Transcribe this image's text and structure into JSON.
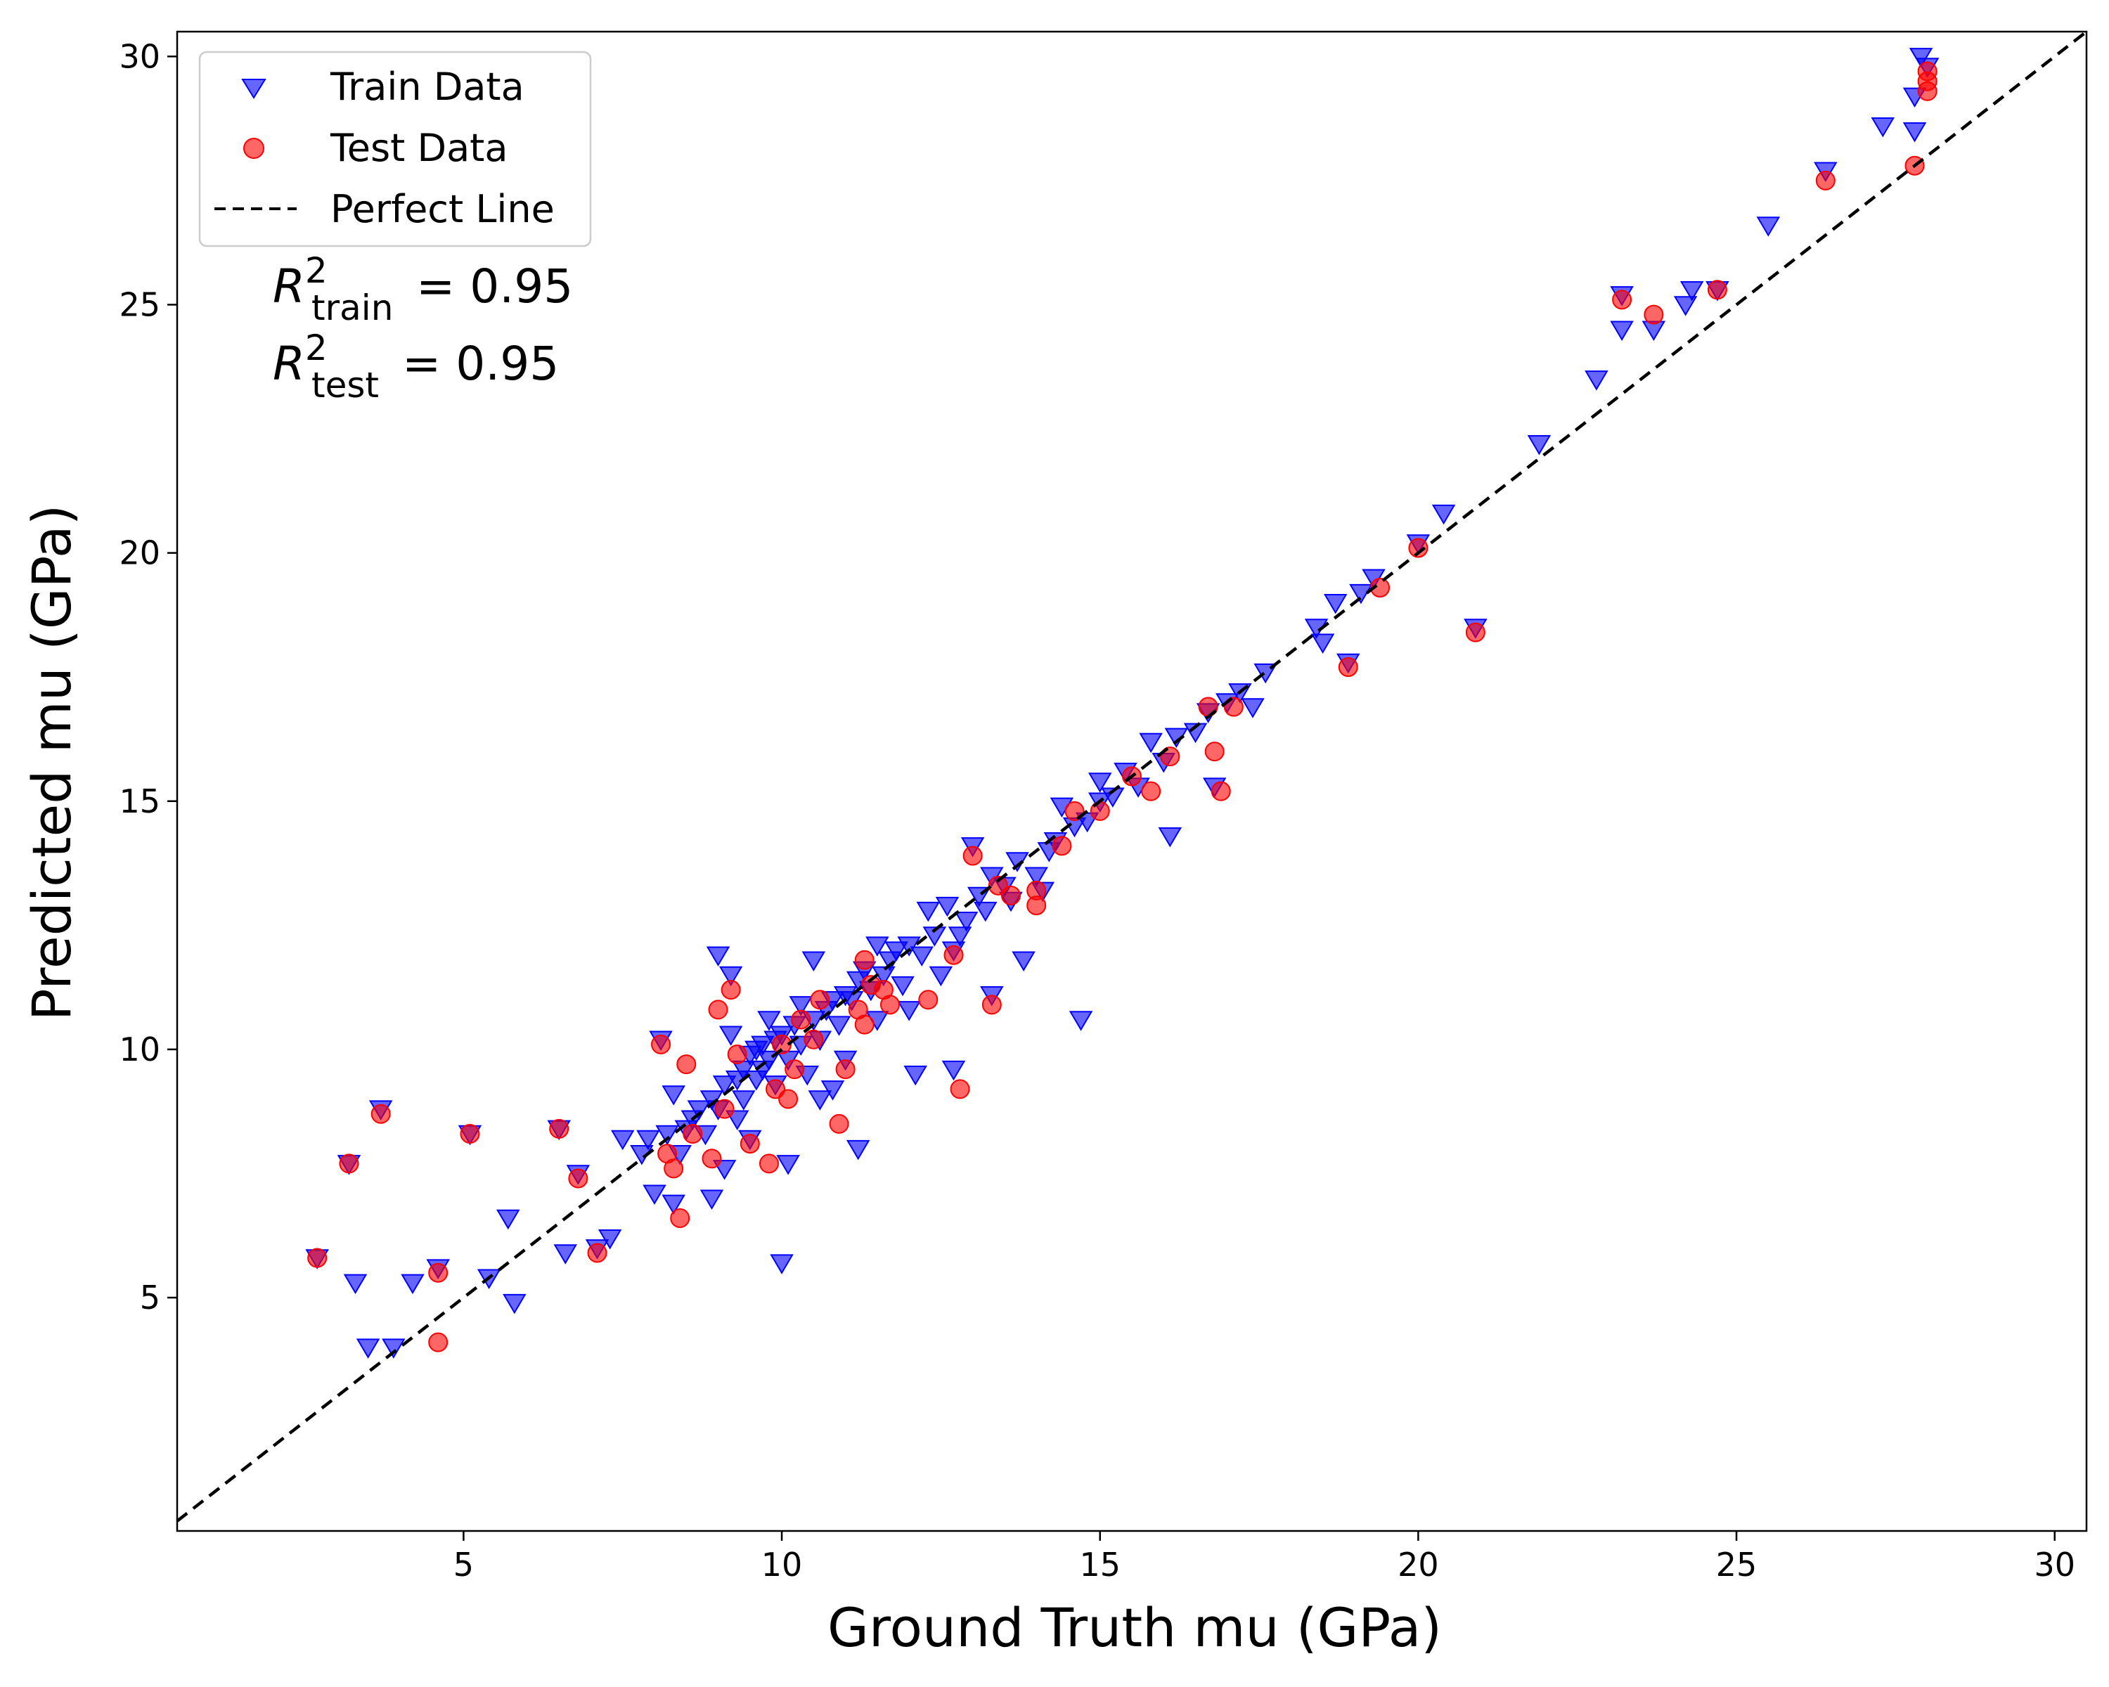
{
  "chart_data": {
    "type": "scatter",
    "title": "",
    "xlabel": "Ground Truth mu (GPa)",
    "ylabel": "Predicted mu (GPa)",
    "xlim": [
      0.5,
      30.5
    ],
    "ylim": [
      0.3,
      30.5
    ],
    "xticks": [
      5,
      10,
      15,
      20,
      25,
      30
    ],
    "yticks": [
      5,
      10,
      15,
      20,
      25,
      30
    ],
    "grid": false,
    "legend_position": "top-left",
    "legend": [
      {
        "label": "Train Data",
        "marker": "triangle-down",
        "color": "#0000ff"
      },
      {
        "label": "Test Data",
        "marker": "circle",
        "color": "#ff0000"
      },
      {
        "label": "Perfect Line",
        "marker": "dashed-line",
        "color": "#000000"
      }
    ],
    "annotations": [
      {
        "symbol": "R",
        "sup": "2",
        "sub": "train",
        "text": "= 0.95"
      },
      {
        "symbol": "R",
        "sup": "2",
        "sub": "test",
        "text": "= 0.95"
      }
    ],
    "series": [
      {
        "name": "Train Data",
        "marker": "triangle-down",
        "color": "#0000ff",
        "points": [
          [
            2.7,
            5.8
          ],
          [
            3.2,
            7.7
          ],
          [
            3.3,
            5.3
          ],
          [
            3.5,
            4.0
          ],
          [
            3.7,
            8.8
          ],
          [
            3.9,
            4.0
          ],
          [
            4.2,
            5.3
          ],
          [
            4.6,
            5.6
          ],
          [
            5.1,
            8.3
          ],
          [
            5.4,
            5.4
          ],
          [
            5.7,
            6.6
          ],
          [
            5.8,
            4.9
          ],
          [
            6.5,
            8.4
          ],
          [
            6.6,
            5.9
          ],
          [
            6.8,
            7.5
          ],
          [
            7.1,
            6.0
          ],
          [
            7.3,
            6.2
          ],
          [
            7.5,
            8.2
          ],
          [
            7.8,
            7.9
          ],
          [
            7.9,
            8.2
          ],
          [
            8.0,
            7.1
          ],
          [
            8.1,
            10.2
          ],
          [
            8.2,
            8.3
          ],
          [
            8.3,
            6.9
          ],
          [
            8.3,
            9.1
          ],
          [
            8.4,
            7.9
          ],
          [
            8.5,
            8.4
          ],
          [
            8.6,
            8.6
          ],
          [
            8.7,
            8.8
          ],
          [
            8.8,
            8.3
          ],
          [
            8.9,
            7.0
          ],
          [
            8.9,
            9.0
          ],
          [
            9.0,
            8.8
          ],
          [
            9.0,
            11.9
          ],
          [
            9.1,
            7.6
          ],
          [
            9.1,
            9.3
          ],
          [
            9.2,
            10.3
          ],
          [
            9.2,
            11.5
          ],
          [
            9.3,
            9.4
          ],
          [
            9.3,
            8.6
          ],
          [
            9.4,
            9.6
          ],
          [
            9.4,
            9.0
          ],
          [
            9.5,
            9.9
          ],
          [
            9.5,
            8.2
          ],
          [
            9.6,
            10.0
          ],
          [
            9.6,
            9.4
          ],
          [
            9.7,
            10.1
          ],
          [
            9.7,
            9.6
          ],
          [
            9.8,
            10.6
          ],
          [
            9.8,
            9.8
          ],
          [
            9.9,
            10.2
          ],
          [
            9.9,
            9.3
          ],
          [
            10.0,
            5.7
          ],
          [
            10.0,
            10.3
          ],
          [
            10.1,
            7.7
          ],
          [
            10.1,
            9.8
          ],
          [
            10.2,
            10.5
          ],
          [
            10.3,
            10.1
          ],
          [
            10.3,
            10.9
          ],
          [
            10.4,
            9.5
          ],
          [
            10.5,
            10.6
          ],
          [
            10.5,
            11.8
          ],
          [
            10.6,
            10.2
          ],
          [
            10.6,
            9.0
          ],
          [
            10.7,
            10.8
          ],
          [
            10.8,
            11.0
          ],
          [
            10.8,
            9.2
          ],
          [
            10.9,
            10.5
          ],
          [
            11.0,
            11.1
          ],
          [
            11.0,
            9.8
          ],
          [
            11.1,
            11.0
          ],
          [
            11.2,
            11.4
          ],
          [
            11.2,
            8.0
          ],
          [
            11.3,
            11.6
          ],
          [
            11.4,
            11.2
          ],
          [
            11.5,
            12.1
          ],
          [
            11.5,
            10.6
          ],
          [
            11.6,
            11.5
          ],
          [
            11.7,
            11.8
          ],
          [
            11.8,
            12.0
          ],
          [
            11.9,
            11.3
          ],
          [
            12.0,
            12.1
          ],
          [
            12.0,
            10.8
          ],
          [
            12.1,
            9.5
          ],
          [
            12.2,
            11.9
          ],
          [
            12.3,
            12.8
          ],
          [
            12.4,
            12.3
          ],
          [
            12.5,
            11.5
          ],
          [
            12.6,
            12.9
          ],
          [
            12.7,
            12.0
          ],
          [
            12.7,
            9.6
          ],
          [
            12.8,
            12.3
          ],
          [
            12.9,
            12.6
          ],
          [
            13.0,
            14.1
          ],
          [
            13.1,
            13.1
          ],
          [
            13.2,
            12.8
          ],
          [
            13.3,
            11.1
          ],
          [
            13.3,
            13.5
          ],
          [
            13.5,
            13.3
          ],
          [
            13.6,
            13.0
          ],
          [
            13.7,
            13.8
          ],
          [
            13.8,
            11.8
          ],
          [
            14.0,
            13.5
          ],
          [
            14.1,
            13.2
          ],
          [
            14.2,
            14.0
          ],
          [
            14.3,
            14.2
          ],
          [
            14.4,
            14.9
          ],
          [
            14.6,
            14.5
          ],
          [
            14.7,
            10.6
          ],
          [
            14.8,
            14.6
          ],
          [
            15.0,
            15.0
          ],
          [
            15.0,
            15.4
          ],
          [
            15.2,
            15.1
          ],
          [
            15.4,
            15.6
          ],
          [
            15.6,
            15.3
          ],
          [
            15.8,
            16.2
          ],
          [
            16.0,
            15.8
          ],
          [
            16.1,
            14.3
          ],
          [
            16.2,
            16.3
          ],
          [
            16.5,
            16.4
          ],
          [
            16.7,
            16.8
          ],
          [
            16.8,
            15.3
          ],
          [
            17.0,
            17.0
          ],
          [
            17.2,
            17.2
          ],
          [
            17.4,
            16.9
          ],
          [
            17.6,
            17.6
          ],
          [
            18.4,
            18.5
          ],
          [
            18.5,
            18.2
          ],
          [
            18.7,
            19.0
          ],
          [
            18.9,
            17.8
          ],
          [
            19.1,
            19.2
          ],
          [
            19.3,
            19.5
          ],
          [
            20.0,
            20.2
          ],
          [
            20.4,
            20.8
          ],
          [
            20.9,
            18.5
          ],
          [
            21.9,
            22.2
          ],
          [
            22.8,
            23.5
          ],
          [
            23.2,
            24.5
          ],
          [
            23.2,
            25.2
          ],
          [
            23.7,
            24.5
          ],
          [
            24.2,
            25.0
          ],
          [
            24.3,
            25.3
          ],
          [
            24.7,
            25.3
          ],
          [
            25.5,
            26.6
          ],
          [
            26.4,
            27.7
          ],
          [
            27.3,
            28.6
          ],
          [
            27.8,
            29.2
          ],
          [
            27.8,
            28.5
          ],
          [
            27.9,
            30.0
          ],
          [
            28.0,
            29.8
          ]
        ]
      },
      {
        "name": "Test Data",
        "marker": "circle",
        "color": "#ff0000",
        "points": [
          [
            2.7,
            5.8
          ],
          [
            3.2,
            7.7
          ],
          [
            3.7,
            8.7
          ],
          [
            4.6,
            4.1
          ],
          [
            4.6,
            5.5
          ],
          [
            5.1,
            8.3
          ],
          [
            6.5,
            8.4
          ],
          [
            6.8,
            7.4
          ],
          [
            7.1,
            5.9
          ],
          [
            8.1,
            10.1
          ],
          [
            8.2,
            7.9
          ],
          [
            8.3,
            7.6
          ],
          [
            8.4,
            6.6
          ],
          [
            8.5,
            9.7
          ],
          [
            8.6,
            8.3
          ],
          [
            8.9,
            7.8
          ],
          [
            9.0,
            10.8
          ],
          [
            9.1,
            8.8
          ],
          [
            9.2,
            11.2
          ],
          [
            9.3,
            9.9
          ],
          [
            9.5,
            8.1
          ],
          [
            9.8,
            7.7
          ],
          [
            9.9,
            9.2
          ],
          [
            10.0,
            10.1
          ],
          [
            10.1,
            9.0
          ],
          [
            10.2,
            9.6
          ],
          [
            10.3,
            10.6
          ],
          [
            10.5,
            10.2
          ],
          [
            10.6,
            11.0
          ],
          [
            10.9,
            8.5
          ],
          [
            11.0,
            9.6
          ],
          [
            11.2,
            10.8
          ],
          [
            11.3,
            10.5
          ],
          [
            11.3,
            11.8
          ],
          [
            11.4,
            11.3
          ],
          [
            11.6,
            11.2
          ],
          [
            11.7,
            10.9
          ],
          [
            12.3,
            11.0
          ],
          [
            12.7,
            11.9
          ],
          [
            12.8,
            9.2
          ],
          [
            13.0,
            13.9
          ],
          [
            13.3,
            10.9
          ],
          [
            13.4,
            13.3
          ],
          [
            13.6,
            13.1
          ],
          [
            14.0,
            12.9
          ],
          [
            14.0,
            13.2
          ],
          [
            14.4,
            14.1
          ],
          [
            14.6,
            14.8
          ],
          [
            15.0,
            14.8
          ],
          [
            15.5,
            15.5
          ],
          [
            15.8,
            15.2
          ],
          [
            16.1,
            15.9
          ],
          [
            16.7,
            16.9
          ],
          [
            16.8,
            16.0
          ],
          [
            16.9,
            15.2
          ],
          [
            17.1,
            16.9
          ],
          [
            18.9,
            17.7
          ],
          [
            19.4,
            19.3
          ],
          [
            20.0,
            20.1
          ],
          [
            20.9,
            18.4
          ],
          [
            23.2,
            25.1
          ],
          [
            23.7,
            24.8
          ],
          [
            24.7,
            25.3
          ],
          [
            26.4,
            27.5
          ],
          [
            27.8,
            27.8
          ],
          [
            28.0,
            29.3
          ],
          [
            28.0,
            29.5
          ],
          [
            28.0,
            29.7
          ]
        ]
      }
    ],
    "reference_line": {
      "name": "Perfect Line",
      "style": "dashed",
      "color": "#000000",
      "x": [
        0.5,
        30.5
      ],
      "y": [
        0.5,
        30.5
      ]
    }
  }
}
